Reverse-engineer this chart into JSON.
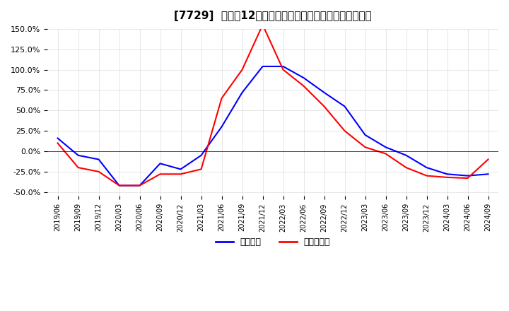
{
  "title": "[7729]  利益の12か月移動合計の対前年同期増減率の推移",
  "ylim": [
    -0.55,
    0.165
  ],
  "yticks": [
    -0.5,
    -0.25,
    0.0,
    0.25,
    0.5,
    0.75,
    1.0,
    1.25,
    1.5
  ],
  "legend_labels": [
    "経常利益",
    "当期純利益"
  ],
  "line_colors": [
    "blue",
    "red"
  ],
  "background_color": "#ffffff",
  "grid_color": "#cccccc",
  "dates": [
    "2019/06",
    "2019/09",
    "2019/12",
    "2020/03",
    "2020/06",
    "2020/09",
    "2020/12",
    "2021/03",
    "2021/06",
    "2021/09",
    "2021/12",
    "2022/03",
    "2022/06",
    "2022/09",
    "2022/12",
    "2023/03",
    "2023/06",
    "2023/09",
    "2023/12",
    "2024/03",
    "2024/06",
    "2024/09"
  ],
  "keijo_rieki": [
    0.16,
    -0.05,
    -0.1,
    -0.42,
    -0.42,
    -0.15,
    -0.22,
    -0.05,
    0.3,
    0.72,
    1.04,
    1.04,
    0.9,
    0.72,
    0.55,
    0.2,
    0.05,
    -0.05,
    -0.2,
    -0.28,
    -0.3,
    -0.28
  ],
  "toukiryueki": [
    0.1,
    -0.2,
    -0.25,
    -0.42,
    -0.42,
    -0.28,
    -0.28,
    -0.22,
    0.65,
    1.0,
    1.55,
    1.0,
    0.8,
    0.55,
    0.25,
    0.05,
    -0.03,
    -0.2,
    -0.3,
    -0.32,
    -0.33,
    -0.1
  ]
}
